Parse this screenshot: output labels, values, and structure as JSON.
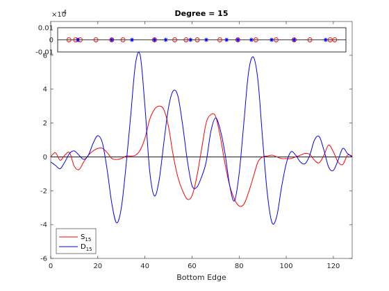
{
  "chart_data": [
    {
      "type": "line",
      "title": "Degree = 15",
      "xlabel": "Bottom Edge",
      "ylabel": "",
      "xlim": [
        0,
        128
      ],
      "ylim": [
        -6,
        8
      ],
      "exponent_label": "×10",
      "exponent_value": "-4",
      "x_ticks": [
        0,
        20,
        40,
        60,
        80,
        100,
        120
      ],
      "y_ticks": [
        -6,
        -4,
        -2,
        0,
        2,
        4,
        6
      ],
      "y_tick_labels": [
        "-6",
        "-4",
        "-2",
        "0",
        "2",
        "4",
        "6"
      ],
      "grid": false,
      "legend_position": "bottom-left",
      "colors": {
        "S": "#ff0000",
        "D": "#0000ff",
        "axis": "#262626"
      },
      "series": [
        {
          "name": "S",
          "subscript": "15",
          "color": "#ff0000",
          "points": [
            [
              0,
              0.0
            ],
            [
              2,
              0.25
            ],
            [
              4,
              -0.2
            ],
            [
              6,
              0.1
            ],
            [
              8,
              0.25
            ],
            [
              10,
              -0.55
            ],
            [
              12,
              -0.75
            ],
            [
              14,
              -0.3
            ],
            [
              16,
              0.1
            ],
            [
              18,
              0.35
            ],
            [
              20,
              0.5
            ],
            [
              22,
              0.5
            ],
            [
              24,
              0.25
            ],
            [
              26,
              -0.1
            ],
            [
              28,
              -0.15
            ],
            [
              30,
              -0.1
            ],
            [
              32,
              0.05
            ],
            [
              34,
              0.05
            ],
            [
              36,
              0.1
            ],
            [
              38,
              0.4
            ],
            [
              40,
              1.1
            ],
            [
              42,
              2.2
            ],
            [
              44,
              2.8
            ],
            [
              46,
              3.0
            ],
            [
              48,
              2.8
            ],
            [
              50,
              1.8
            ],
            [
              52,
              0.1
            ],
            [
              54,
              -1.2
            ],
            [
              56,
              -2.0
            ],
            [
              58,
              -2.5
            ],
            [
              60,
              -2.3
            ],
            [
              62,
              -1.2
            ],
            [
              64,
              0.4
            ],
            [
              66,
              2.0
            ],
            [
              68,
              2.5
            ],
            [
              70,
              2.4
            ],
            [
              72,
              1.2
            ],
            [
              74,
              -0.4
            ],
            [
              76,
              -1.7
            ],
            [
              78,
              -2.5
            ],
            [
              80,
              -2.9
            ],
            [
              82,
              -2.8
            ],
            [
              84,
              -2.1
            ],
            [
              86,
              -1.2
            ],
            [
              88,
              -0.3
            ],
            [
              90,
              0.0
            ],
            [
              92,
              0.05
            ],
            [
              94,
              0.1
            ],
            [
              96,
              0.0
            ],
            [
              98,
              -0.1
            ],
            [
              100,
              -0.1
            ],
            [
              102,
              -0.1
            ],
            [
              104,
              0.0
            ],
            [
              106,
              0.1
            ],
            [
              108,
              0.2
            ],
            [
              110,
              0.15
            ],
            [
              112,
              -0.2
            ],
            [
              114,
              -0.35
            ],
            [
              116,
              0.1
            ],
            [
              118,
              0.7
            ],
            [
              120,
              0.3
            ],
            [
              122,
              -0.3
            ],
            [
              124,
              -0.45
            ],
            [
              126,
              0.1
            ],
            [
              128,
              0.05
            ]
          ]
        },
        {
          "name": "D",
          "subscript": "15",
          "color": "#0000ff",
          "points": [
            [
              0,
              -0.3
            ],
            [
              2,
              -0.5
            ],
            [
              4,
              -0.7
            ],
            [
              6,
              -0.3
            ],
            [
              8,
              0.2
            ],
            [
              10,
              0.35
            ],
            [
              12,
              0.1
            ],
            [
              14,
              -0.15
            ],
            [
              16,
              0.1
            ],
            [
              18,
              0.8
            ],
            [
              20,
              1.25
            ],
            [
              22,
              0.8
            ],
            [
              24,
              -0.8
            ],
            [
              26,
              -2.8
            ],
            [
              28,
              -3.9
            ],
            [
              30,
              -3.0
            ],
            [
              32,
              -0.5
            ],
            [
              34,
              2.5
            ],
            [
              36,
              5.5
            ],
            [
              38,
              6.0
            ],
            [
              40,
              3.0
            ],
            [
              42,
              -0.8
            ],
            [
              44,
              -2.3
            ],
            [
              46,
              -1.4
            ],
            [
              48,
              0.8
            ],
            [
              50,
              2.9
            ],
            [
              52,
              3.9
            ],
            [
              54,
              3.6
            ],
            [
              56,
              1.9
            ],
            [
              58,
              -0.2
            ],
            [
              60,
              -1.7
            ],
            [
              62,
              -1.8
            ],
            [
              64,
              -1.2
            ],
            [
              66,
              -0.3
            ],
            [
              68,
              1.5
            ],
            [
              70,
              2.3
            ],
            [
              72,
              1.6
            ],
            [
              74,
              0.2
            ],
            [
              76,
              -1.7
            ],
            [
              78,
              -2.6
            ],
            [
              80,
              -1.0
            ],
            [
              82,
              2.0
            ],
            [
              84,
              5.0
            ],
            [
              86,
              5.9
            ],
            [
              88,
              4.5
            ],
            [
              90,
              1.0
            ],
            [
              92,
              -2.2
            ],
            [
              94,
              -3.9
            ],
            [
              96,
              -3.5
            ],
            [
              98,
              -1.8
            ],
            [
              100,
              -0.4
            ],
            [
              102,
              0.3
            ],
            [
              104,
              0.1
            ],
            [
              106,
              -0.3
            ],
            [
              108,
              -0.4
            ],
            [
              110,
              0.1
            ],
            [
              112,
              1.0
            ],
            [
              114,
              1.2
            ],
            [
              116,
              0.4
            ],
            [
              118,
              -0.6
            ],
            [
              120,
              -0.8
            ],
            [
              122,
              -0.2
            ],
            [
              124,
              0.5
            ],
            [
              126,
              0.2
            ],
            [
              128,
              0.0
            ]
          ]
        }
      ]
    },
    {
      "type": "scatter",
      "inset": true,
      "xlim": [
        0,
        128
      ],
      "ylim": [
        -0.01,
        0.01
      ],
      "y_tick_labels": [
        "0.01",
        "0",
        "-0.01"
      ],
      "y_ticks": [
        0.01,
        0,
        -0.01
      ],
      "series": [
        {
          "marker": "circle",
          "color": "#ff0000",
          "x": [
            5,
            8,
            10,
            17,
            24,
            29,
            43,
            52,
            57,
            62,
            72,
            80,
            88,
            97,
            105,
            112,
            121,
            123
          ],
          "y": [
            0,
            0,
            0,
            0,
            0,
            0,
            0,
            0,
            0,
            0,
            0,
            0,
            0,
            0,
            0,
            0,
            0,
            0
          ]
        },
        {
          "marker": "star",
          "color": "#0000ff",
          "x": [
            9,
            24,
            33,
            43,
            48,
            59,
            66,
            75,
            80,
            86,
            95,
            105,
            119
          ],
          "y": [
            0,
            0,
            0,
            0,
            0,
            0,
            0,
            0,
            0,
            0,
            0,
            0,
            0
          ]
        }
      ]
    }
  ]
}
